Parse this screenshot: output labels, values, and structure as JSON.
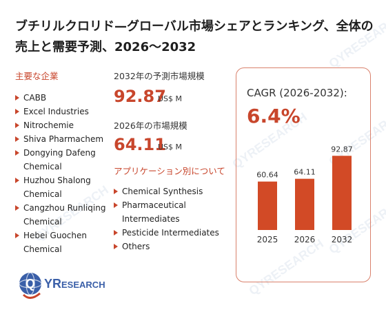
{
  "title": "ブチリルクロリド—グローバル市場シェアとランキング、全体の売上と需要予測、2026〜2032",
  "watermark": "QYRESEARCH",
  "companies": {
    "heading": "主要な企業",
    "items": [
      "CABB",
      "Excel Industries",
      "Nitrochemie",
      "Shiva Pharmachem",
      "Dongying Dafeng Chemical",
      "Huzhou Shalong Chemical",
      "Cangzhou Runliqing Chemical",
      "Hebei Guochen Chemical"
    ]
  },
  "market": {
    "size_2032_label": "2032年の予測市場規模",
    "size_2032_value": "92.87",
    "size_2032_unit": "US$ M",
    "size_2026_label": "2026年の市場規模",
    "size_2026_value": "64.11",
    "size_2026_unit": "US$ M"
  },
  "applications": {
    "heading": "アプリケーション別について",
    "items": [
      "Chemical Synthesis",
      "Pharmaceutical Intermediates",
      "Pesticide Intermediates",
      "Others"
    ]
  },
  "cagr": {
    "label": "CAGR (2026-2032):",
    "value": "6.4%"
  },
  "logo": {
    "text_q": "Q",
    "text_yr": "YR",
    "text_research": "ESEARCH"
  },
  "colors": {
    "accent": "#c8462c",
    "bar": "#d24a26",
    "border": "#d9806b"
  },
  "chart_data": {
    "type": "bar",
    "categories": [
      "2025",
      "2026",
      "2032"
    ],
    "values": [
      60.64,
      64.11,
      92.87
    ],
    "value_labels": [
      "60.64",
      "64.11",
      "92.87"
    ],
    "ylim": [
      0,
      100
    ],
    "grid": false,
    "legend": "none"
  }
}
